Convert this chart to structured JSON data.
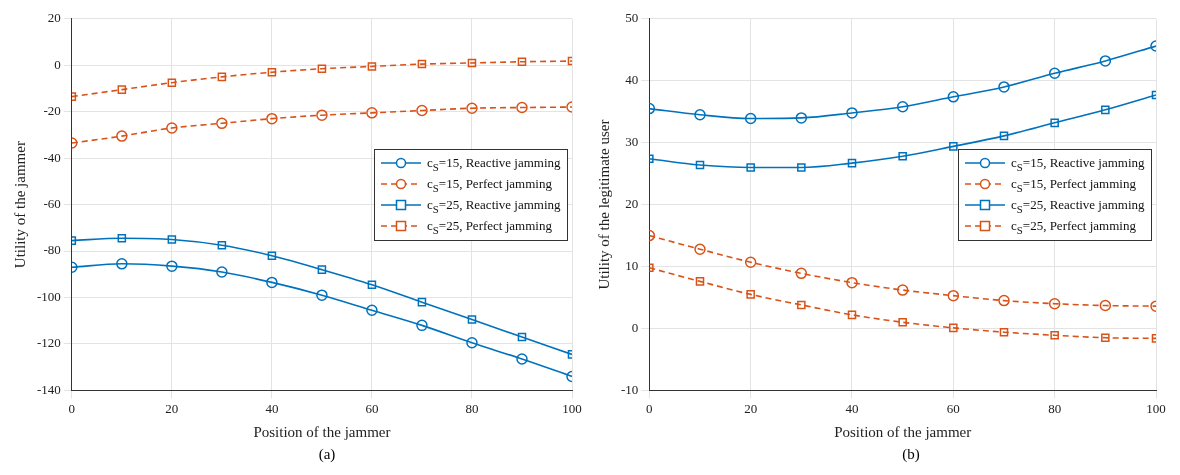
{
  "chart_data": [
    {
      "type": "line",
      "xlabel": "Position of the jammer",
      "ylabel": "Utility of the jammer",
      "annotations": [
        "(a)"
      ],
      "x": [
        0,
        10,
        20,
        30,
        40,
        50,
        60,
        70,
        80,
        90,
        100
      ],
      "xlim": [
        0,
        100
      ],
      "xticks": [
        0,
        20,
        40,
        60,
        80,
        100
      ],
      "ylim": [
        -140,
        20
      ],
      "yticks": [
        -140,
        -120,
        -100,
        -80,
        -60,
        -40,
        -20,
        0,
        20
      ],
      "grid": true,
      "legend": "right",
      "series": [
        {
          "name": "c$_{S}$=15, Reactive jamming",
          "color": "#0072bd",
          "marker": "circle",
          "line_style": "solid",
          "values": [
            -87,
            -85.5,
            -86.5,
            -89,
            -93.5,
            -99,
            -105.5,
            -112,
            -119.5,
            -126.5,
            -134
          ]
        },
        {
          "name": "c$_{S}$=15, Perfect jamming",
          "color": "#d95319",
          "marker": "circle",
          "line_style": "dashed",
          "values": [
            -33.5,
            -30.5,
            -27,
            -25,
            -23,
            -21.5,
            -20.5,
            -19.5,
            -18.5,
            -18.2,
            -18
          ]
        },
        {
          "name": "c$_{S}$=25, Reactive jamming",
          "color": "#0072bd",
          "marker": "square",
          "line_style": "solid",
          "values": [
            -75.5,
            -74.5,
            -75,
            -77.5,
            -82,
            -88,
            -94.5,
            -102,
            -109.5,
            -117,
            -124.5
          ]
        },
        {
          "name": "c$_{S}$=25, Perfect jamming",
          "color": "#d95319",
          "marker": "square",
          "line_style": "dashed",
          "values": [
            -13.5,
            -10.5,
            -7.5,
            -5,
            -3,
            -1.5,
            -0.5,
            0.5,
            1,
            1.5,
            1.8
          ]
        }
      ]
    },
    {
      "type": "line",
      "xlabel": "Position of the jammer",
      "ylabel": "Utility of the legitimate user",
      "annotations": [
        "(b)"
      ],
      "x": [
        0,
        10,
        20,
        30,
        40,
        50,
        60,
        70,
        80,
        90,
        100
      ],
      "xlim": [
        0,
        100
      ],
      "xticks": [
        0,
        20,
        40,
        60,
        80,
        100
      ],
      "ylim": [
        -10,
        50
      ],
      "yticks": [
        -10,
        0,
        10,
        20,
        30,
        40,
        50
      ],
      "grid": true,
      "legend": "right",
      "series": [
        {
          "name": "c$_{S}$=15, Reactive jamming",
          "color": "#0072bd",
          "marker": "circle",
          "line_style": "solid",
          "values": [
            35.5,
            34.5,
            33.9,
            34,
            34.8,
            35.8,
            37.4,
            39,
            41.2,
            43.2,
            45.6
          ]
        },
        {
          "name": "c$_{S}$=15, Perfect jamming",
          "color": "#d95319",
          "marker": "circle",
          "line_style": "dashed",
          "values": [
            15,
            12.8,
            10.7,
            8.9,
            7.4,
            6.2,
            5.3,
            4.5,
            4,
            3.7,
            3.6
          ]
        },
        {
          "name": "c$_{S}$=25, Reactive jamming",
          "color": "#0072bd",
          "marker": "square",
          "line_style": "solid",
          "values": [
            27.4,
            26.4,
            26,
            26,
            26.7,
            27.8,
            29.4,
            31.1,
            33.2,
            35.3,
            37.7
          ]
        },
        {
          "name": "c$_{S}$=25, Perfect jamming",
          "color": "#d95319",
          "marker": "square",
          "line_style": "dashed",
          "values": [
            9.8,
            7.6,
            5.5,
            3.8,
            2.2,
            1,
            0.1,
            -0.6,
            -1.1,
            -1.5,
            -1.6
          ]
        }
      ]
    }
  ]
}
